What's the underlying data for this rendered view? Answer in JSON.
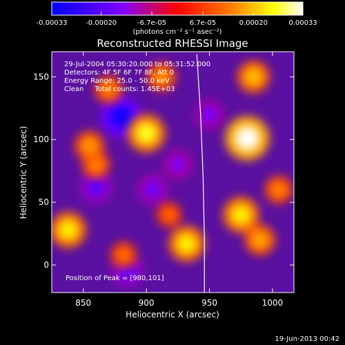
{
  "colorbar": {
    "tick_labels": [
      "-0.00033",
      "-0.00020",
      "-6.7e-05",
      "6.7e-05",
      "0.00020",
      "0.00033"
    ],
    "tick_values": [
      -0.00033,
      -0.0002,
      -6.7e-05,
      6.7e-05,
      0.0002,
      0.00033
    ],
    "units": "(photons cm⁻² s⁻¹ asec⁻²)",
    "range": [
      -0.00033,
      0.00033
    ],
    "colors": [
      "#0000ff",
      "#7f00ff",
      "#ff0000",
      "#ff8000",
      "#ffff00",
      "#ffffff"
    ]
  },
  "image": {
    "title": "Reconstructed RHESSI Image",
    "info_lines": [
      "29-Jul-2004 05:30:20.000 to 05:31:52.000",
      "Detectors: 4F 5F 6F 7F 8F, Att 0",
      "Energy Range: 25.0 - 50.0 keV",
      "Clean     Total counts: 1.45E+03"
    ],
    "peak_text": "Position of Peak = [980,101]",
    "xlabel": "Heliocentric X (arcsec)",
    "ylabel": "Heliocentric Y (arcsec)",
    "footer_date": "19-Jun-2013 00:42"
  },
  "chart_data": {
    "type": "heatmap",
    "title": "Reconstructed RHESSI Image",
    "xlabel": "Heliocentric X (arcsec)",
    "ylabel": "Heliocentric Y (arcsec)",
    "xlim": [
      825,
      1017
    ],
    "ylim": [
      -22,
      170
    ],
    "x_ticks": [
      850,
      900,
      950,
      1000
    ],
    "y_ticks": [
      0,
      50,
      100,
      150
    ],
    "colorbar_range": [
      -0.00033,
      0.00033
    ],
    "peak_position": [
      980,
      101
    ],
    "limb_curve": [
      [
        940,
        168
      ],
      [
        943,
        120
      ],
      [
        945,
        70
      ],
      [
        946,
        20
      ],
      [
        946,
        -22
      ]
    ],
    "sources": [
      {
        "x": 980,
        "y": 101,
        "value": 0.00033
      },
      {
        "x": 985,
        "y": 150,
        "value": 0.0002
      },
      {
        "x": 975,
        "y": 40,
        "value": 0.00024
      },
      {
        "x": 990,
        "y": 20,
        "value": 0.00018
      },
      {
        "x": 1005,
        "y": 60,
        "value": 0.00015
      },
      {
        "x": 900,
        "y": 105,
        "value": 0.00026
      },
      {
        "x": 855,
        "y": 95,
        "value": 0.00017
      },
      {
        "x": 912,
        "y": 150,
        "value": 0.00016
      },
      {
        "x": 870,
        "y": 140,
        "value": 0.00015
      },
      {
        "x": 932,
        "y": 17,
        "value": 0.00024
      },
      {
        "x": 838,
        "y": 28,
        "value": 0.00024
      },
      {
        "x": 860,
        "y": 80,
        "value": 0.00015
      },
      {
        "x": 882,
        "y": 8,
        "value": 0.00013
      },
      {
        "x": 918,
        "y": 40,
        "value": 0.00012
      },
      {
        "x": 880,
        "y": 118,
        "value": -0.0003
      },
      {
        "x": 860,
        "y": 62,
        "value": -0.0002
      },
      {
        "x": 905,
        "y": 60,
        "value": -0.00018
      },
      {
        "x": 885,
        "y": -5,
        "value": -0.0002
      },
      {
        "x": 925,
        "y": 80,
        "value": -0.00016
      },
      {
        "x": 950,
        "y": 120,
        "value": -0.00017
      }
    ]
  }
}
